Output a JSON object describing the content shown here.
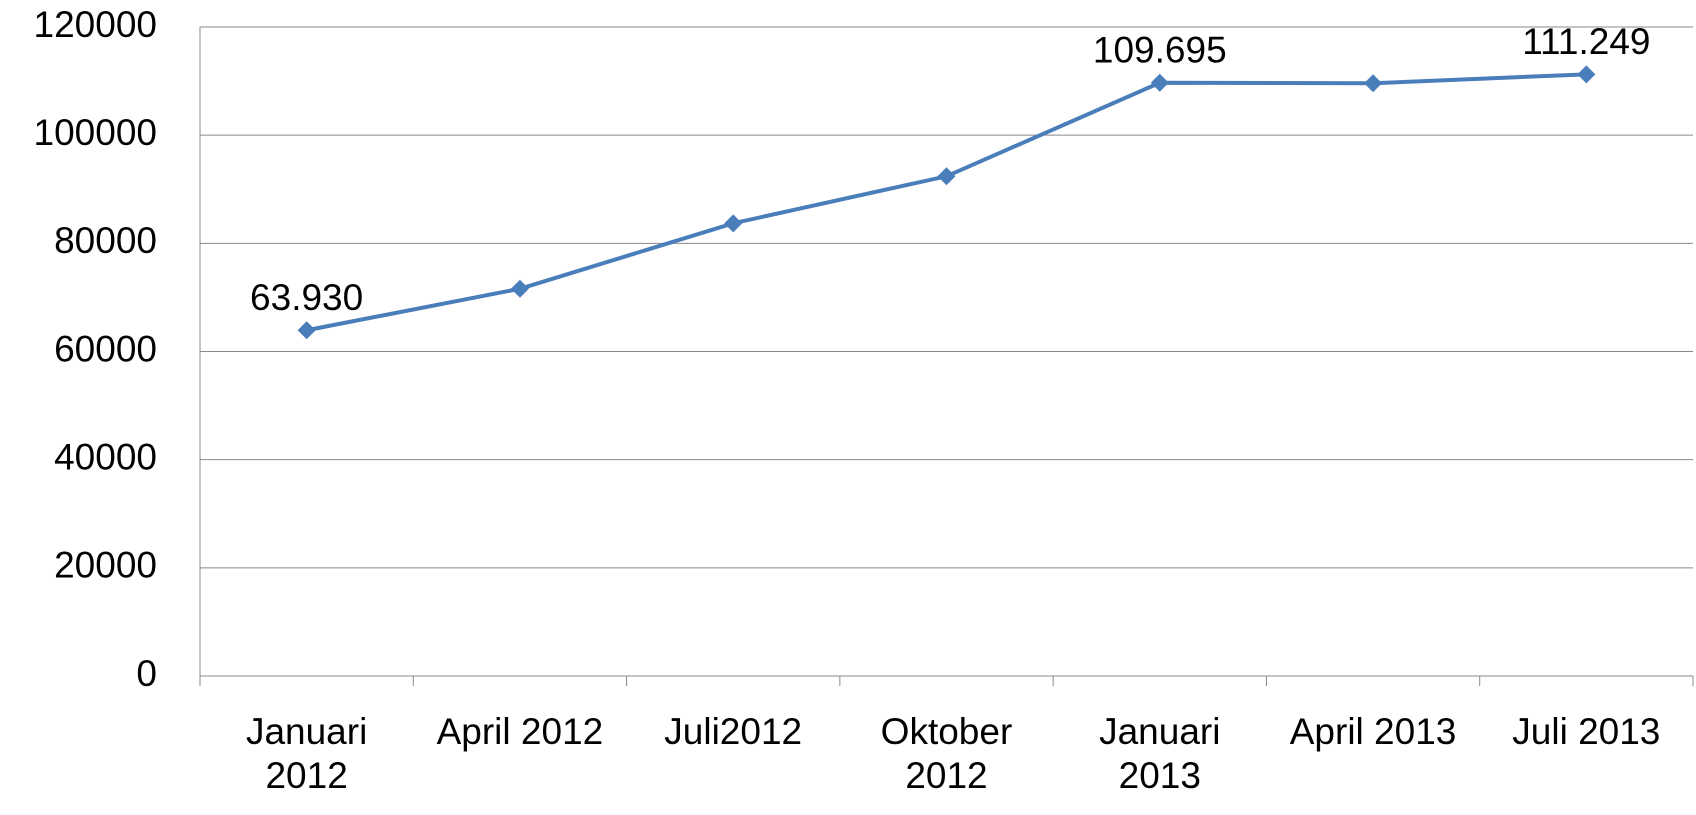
{
  "chart_data": {
    "type": "line",
    "categories": [
      "Januari 2012",
      "April 2012",
      "Juli2012",
      "Oktober 2012",
      "Januari 2013",
      "April 2013",
      "Juli 2013"
    ],
    "series": [
      {
        "color": "#4a7ebb",
        "values": [
          63930,
          71600,
          83700,
          92400,
          109695,
          109600,
          111249
        ],
        "value_labels": [
          "63.930",
          null,
          null,
          null,
          "109.695",
          null,
          "111.249"
        ]
      }
    ],
    "ylim": [
      0,
      120000
    ],
    "yticks": [
      0,
      20000,
      40000,
      60000,
      80000,
      100000,
      120000
    ],
    "grid": true
  }
}
